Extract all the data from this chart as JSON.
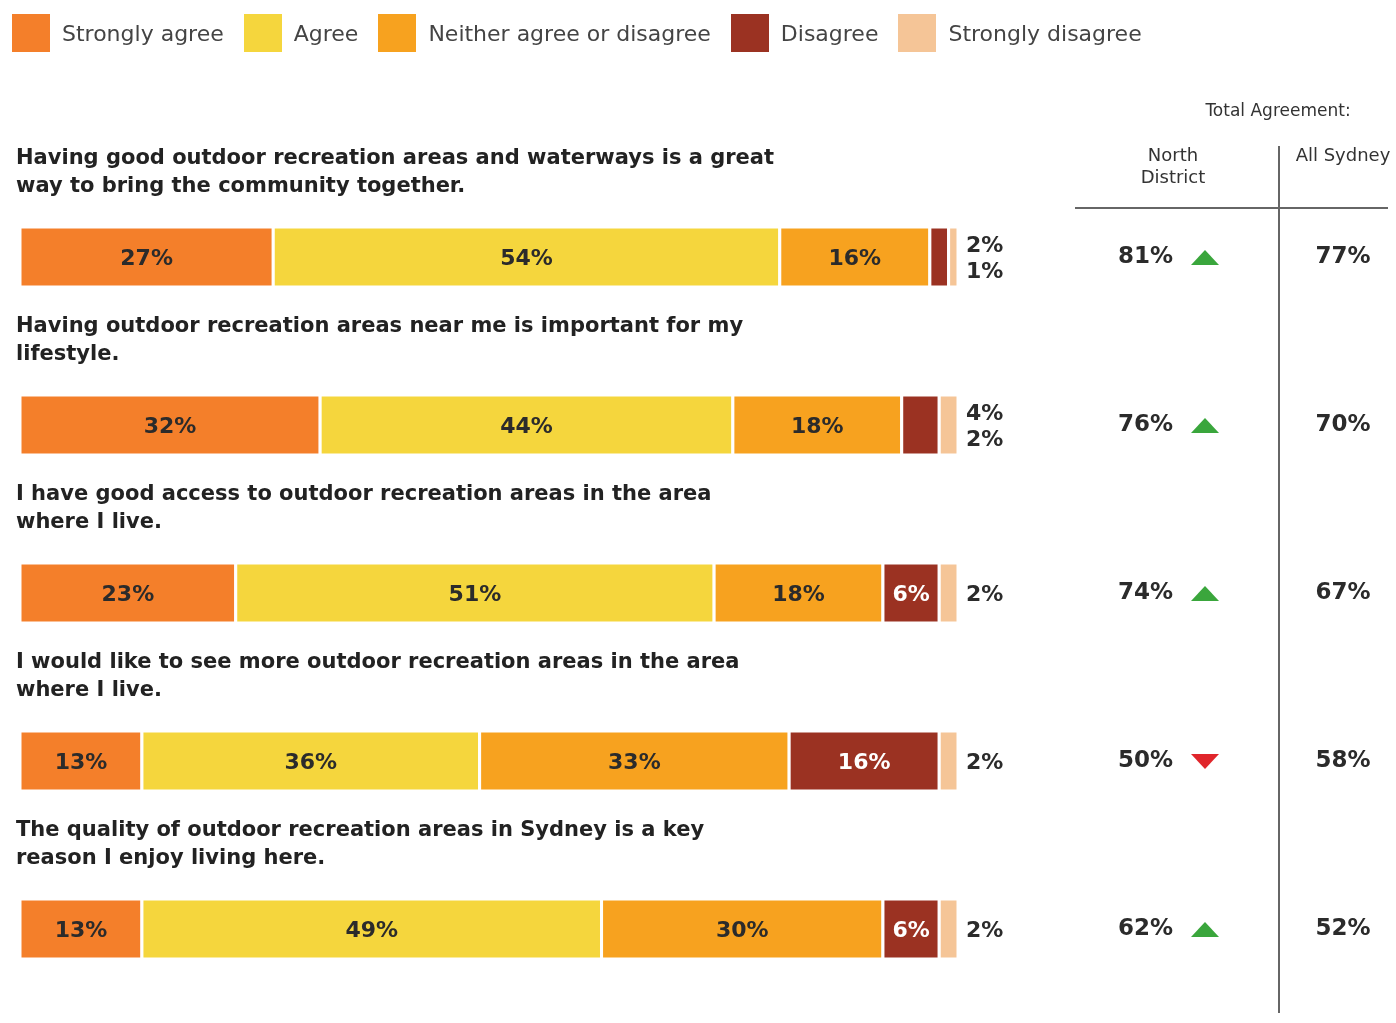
{
  "chart_data": {
    "type": "bar",
    "orientation": "horizontal",
    "stacked": true,
    "legend": "top",
    "categories": [
      "Having good outdoor recreation areas and waterways is a great way to bring the community together.",
      "Having outdoor recreation areas near me is important for my lifestyle.",
      "I have good access to outdoor recreation areas in the area where I live.",
      "I would like to see more outdoor recreation areas in the area where I live.",
      "The quality of outdoor recreation areas in Sydney is a key reason I enjoy living here."
    ],
    "series": [
      {
        "name": "Strongly agree",
        "color": "#f47f2a",
        "values": [
          27,
          32,
          23,
          13,
          13
        ],
        "value_labels": [
          "27%",
          "32%",
          "23%",
          "13%",
          "13%"
        ]
      },
      {
        "name": "Agree",
        "color": "#f5d63d",
        "values": [
          54,
          44,
          51,
          36,
          49
        ],
        "value_labels": [
          "54%",
          "44%",
          "51%",
          "36%",
          "49%"
        ]
      },
      {
        "name": "Neither agree or disagree",
        "color": "#f7a21f",
        "values": [
          16,
          18,
          18,
          33,
          30
        ],
        "value_labels": [
          "16%",
          "18%",
          "18%",
          "33%",
          "30%"
        ]
      },
      {
        "name": "Disagree",
        "color": "#9b3222",
        "values": [
          2,
          4,
          6,
          16,
          6
        ],
        "value_labels": [
          "2%",
          "4%",
          "6%",
          "16%",
          "6%"
        ]
      },
      {
        "name": "Strongly disagree",
        "color": "#f5c597",
        "values": [
          1,
          2,
          2,
          2,
          2
        ],
        "value_labels": [
          "1%",
          "2%",
          "2%",
          "2%",
          "2%"
        ]
      }
    ],
    "annotations": [
      "Total Agreement:",
      "North District",
      "All Sydney",
      "81%",
      "77%",
      "76%",
      "70%",
      "74%",
      "67%",
      "50%",
      "58%",
      "62%",
      "52%"
    ]
  }
}
